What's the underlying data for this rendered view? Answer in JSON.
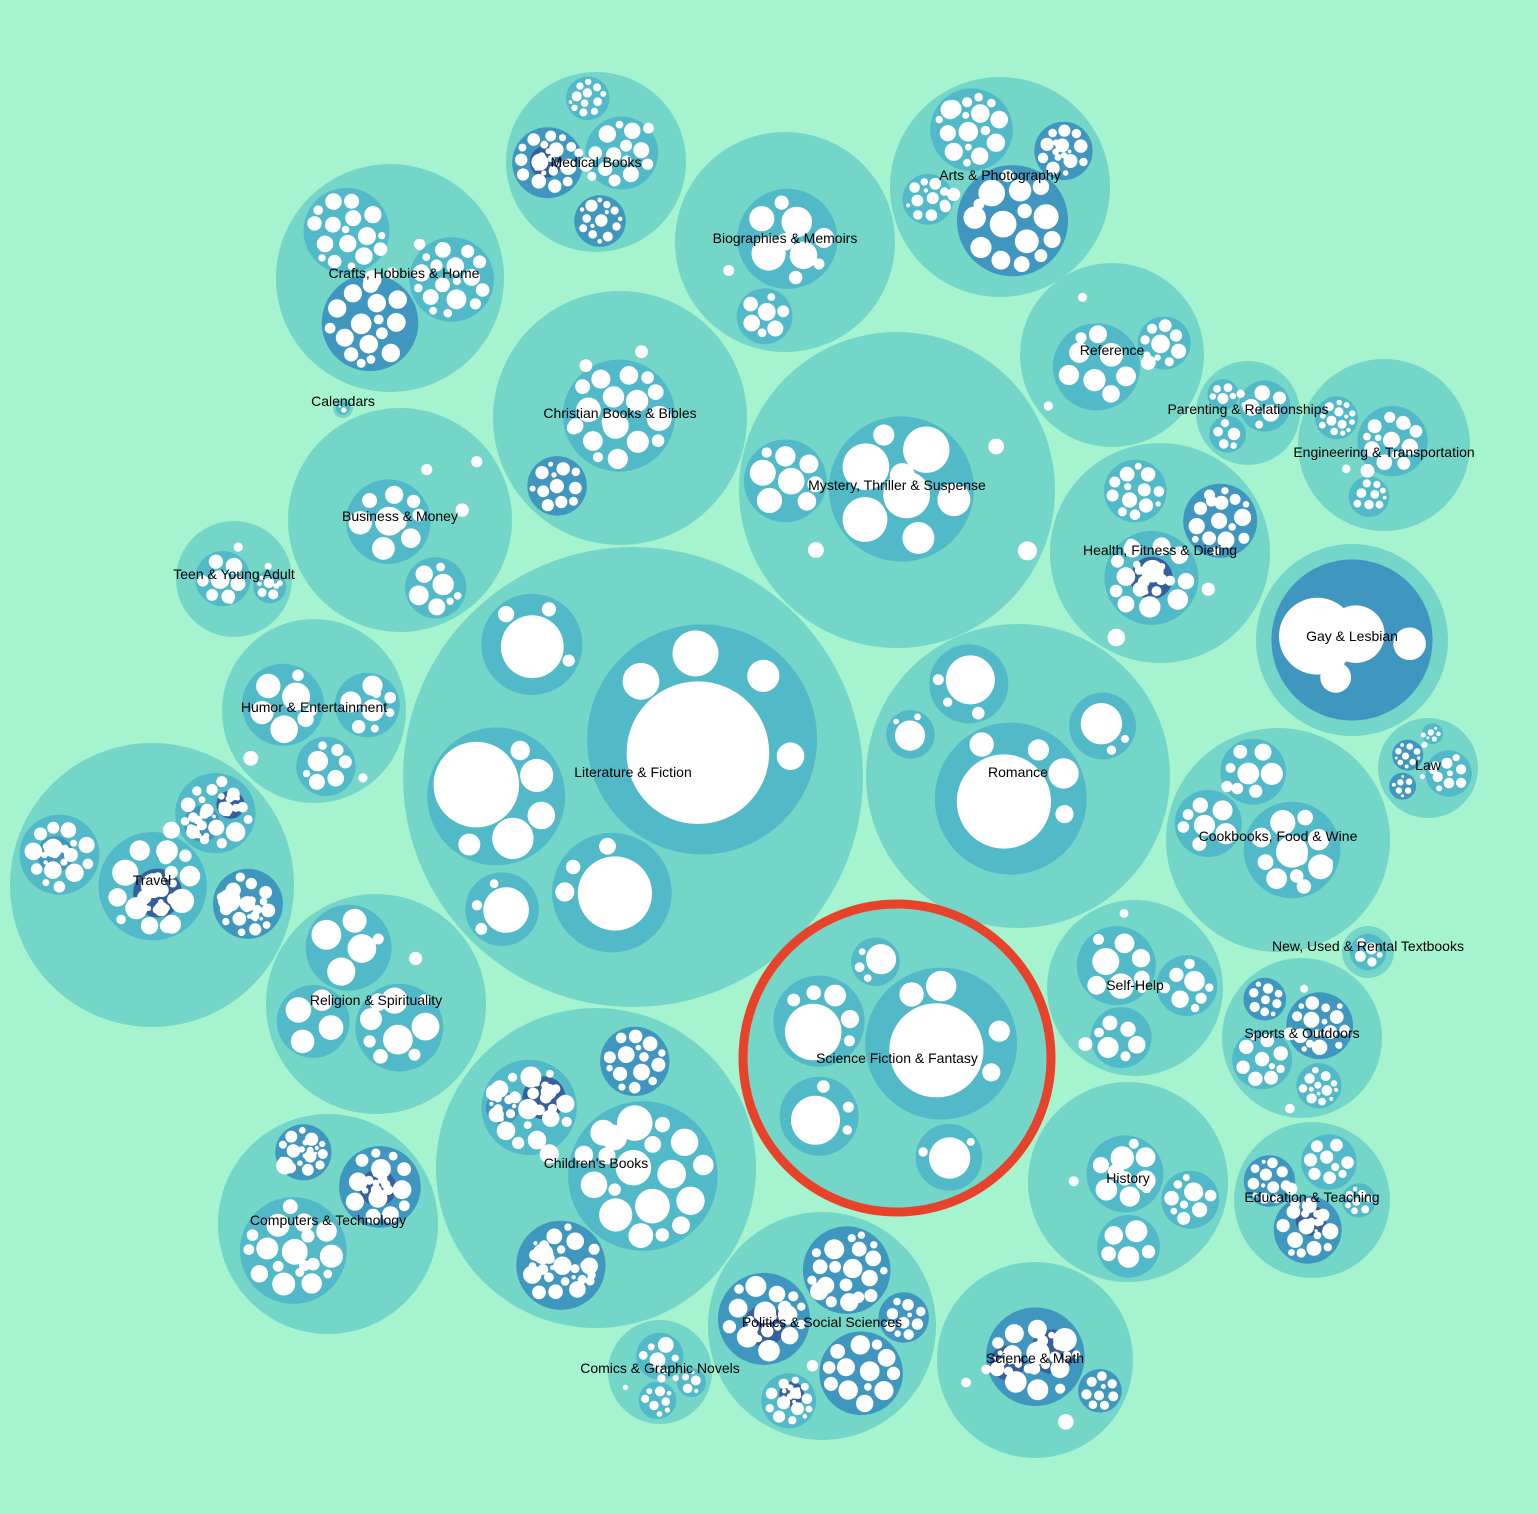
{
  "colors": {
    "background": "#a5f3cf",
    "depth1": "#74d6c8",
    "depth2": "#52b9c9",
    "depth3": "#3f97bf",
    "depth4": "#365f9c",
    "leaf": "#ffffff",
    "highlight": "#e8432a"
  },
  "highlighted": "Science Fiction & Fantasy",
  "categories": [
    {
      "name": "Medical Books"
    },
    {
      "name": "Biographies & Memoirs"
    },
    {
      "name": "Arts & Photography"
    },
    {
      "name": "Crafts, Hobbies & Home"
    },
    {
      "name": "Reference"
    },
    {
      "name": "Calendars"
    },
    {
      "name": "Christian Books & Bibles"
    },
    {
      "name": "Parenting & Relationships"
    },
    {
      "name": "Engineering & Transportation"
    },
    {
      "name": "Mystery, Thriller & Suspense"
    },
    {
      "name": "Business & Money"
    },
    {
      "name": "Health, Fitness & Dieting"
    },
    {
      "name": "Teen & Young Adult"
    },
    {
      "name": "Gay & Lesbian"
    },
    {
      "name": "Humor & Entertainment"
    },
    {
      "name": "Literature & Fiction"
    },
    {
      "name": "Romance"
    },
    {
      "name": "Law"
    },
    {
      "name": "Travel"
    },
    {
      "name": "Cookbooks, Food & Wine"
    },
    {
      "name": "New, Used & Rental Textbooks"
    },
    {
      "name": "Religion & Spirituality"
    },
    {
      "name": "Self-Help"
    },
    {
      "name": "Science Fiction & Fantasy"
    },
    {
      "name": "Sports & Outdoors"
    },
    {
      "name": "Children's Books"
    },
    {
      "name": "History"
    },
    {
      "name": "Education & Teaching"
    },
    {
      "name": "Computers & Technology"
    },
    {
      "name": "Politics & Social Sciences"
    },
    {
      "name": "Comics & Graphic Novels"
    },
    {
      "name": "Science & Math"
    }
  ]
}
